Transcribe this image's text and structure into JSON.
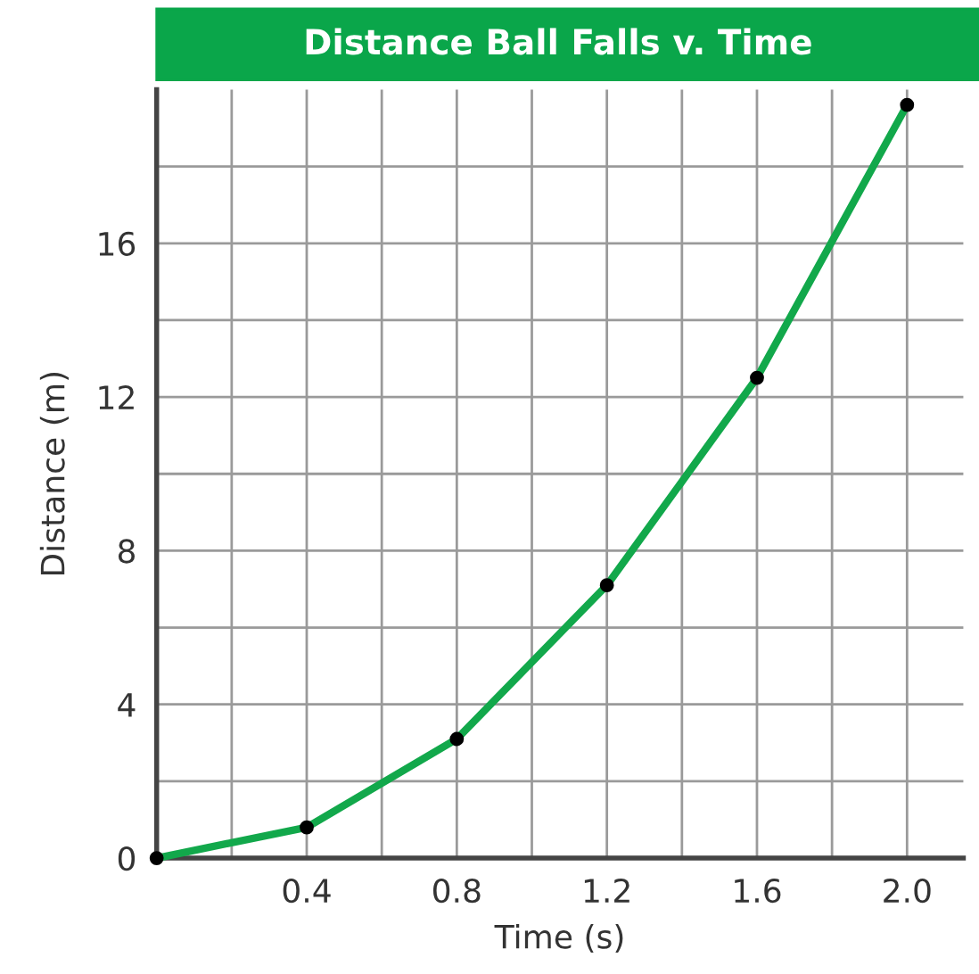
{
  "chart_data": {
    "type": "line",
    "title": "Distance Ball Falls v. Time",
    "xlabel": "Time (s)",
    "ylabel": "Distance (m)",
    "x": [
      0,
      0.4,
      0.8,
      1.2,
      1.6,
      2.0
    ],
    "series": [
      {
        "color": "#12a84b",
        "values": [
          0,
          0.8,
          3.1,
          7.1,
          12.5,
          19.6
        ],
        "marker": "none"
      },
      {
        "type": "scatter",
        "color": "#000000",
        "values": [
          0,
          0.8,
          3.1,
          7.1,
          12.5,
          19.6
        ],
        "marker": "circle"
      }
    ],
    "xlim": [
      0,
      2.15
    ],
    "ylim": [
      0,
      20
    ],
    "xticks": [
      {
        "value": 0,
        "label": null
      },
      {
        "value": 0.2,
        "label": null
      },
      {
        "value": 0.4,
        "label": "0.4"
      },
      {
        "value": 0.6,
        "label": null
      },
      {
        "value": 0.8,
        "label": "0.8"
      },
      {
        "value": 1.0,
        "label": null
      },
      {
        "value": 1.2,
        "label": "1.2"
      },
      {
        "value": 1.4,
        "label": null
      },
      {
        "value": 1.6,
        "label": "1.6"
      },
      {
        "value": 1.8,
        "label": null
      },
      {
        "value": 2.0,
        "label": "2.0"
      }
    ],
    "yticks": [
      0,
      {
        "value": 2,
        "label": null
      },
      4,
      {
        "value": 6,
        "label": null
      },
      8,
      {
        "value": 10,
        "label": null
      },
      12,
      {
        "value": 14,
        "label": null
      },
      16,
      {
        "value": 18,
        "label": null
      }
    ],
    "grid": true
  }
}
